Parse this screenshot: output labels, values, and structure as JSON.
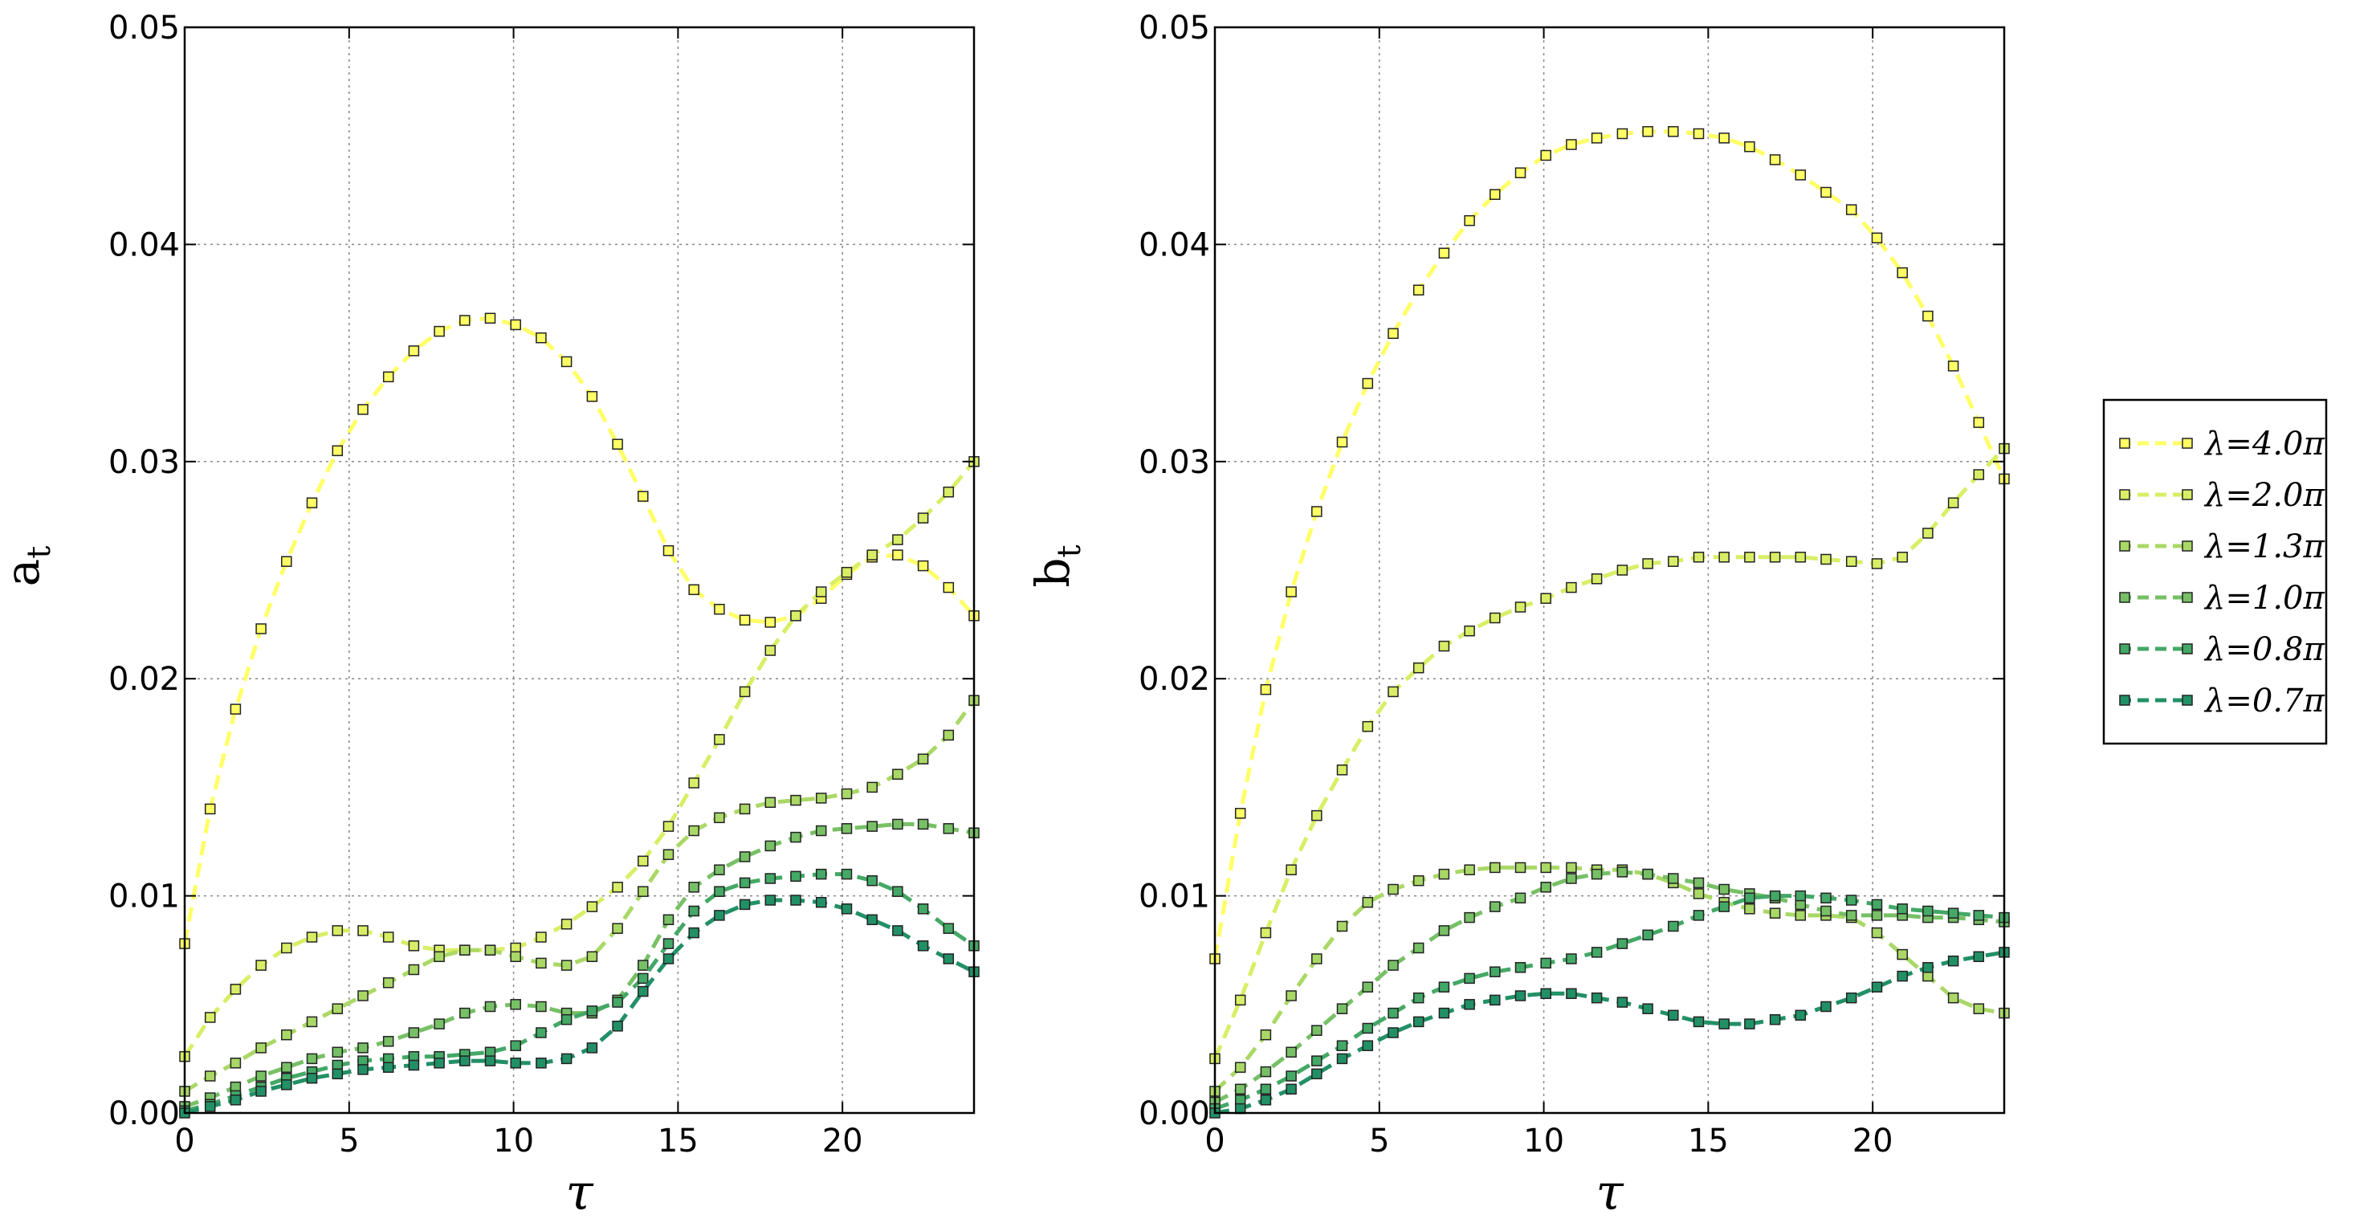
{
  "chart_data": [
    {
      "type": "line",
      "ylabel": "a",
      "ylabel_sub": "t",
      "xlabel": "τ",
      "xlim": [
        0,
        24
      ],
      "ylim": [
        0,
        0.05
      ],
      "xticks": [
        "0",
        "5",
        "10",
        "15",
        "20"
      ],
      "yticks": [
        "0.00",
        "0.01",
        "0.02",
        "0.03",
        "0.04",
        "0.05"
      ],
      "grid": true,
      "series": [
        {
          "name": "λ=4.0π",
          "color": "#ffff66",
          "values": [
            0.0078,
            0.014,
            0.0186,
            0.0223,
            0.0254,
            0.0281,
            0.0305,
            0.0324,
            0.0339,
            0.0351,
            0.036,
            0.0365,
            0.0366,
            0.0363,
            0.0357,
            0.0346,
            0.033,
            0.0308,
            0.0284,
            0.0259,
            0.0241,
            0.0232,
            0.0227,
            0.0226,
            0.0229,
            0.0237,
            0.0248,
            0.0256,
            0.0257,
            0.0252,
            0.0242,
            0.0229
          ]
        },
        {
          "name": "λ=2.0π",
          "color": "#d9ee66",
          "values": [
            0.0026,
            0.0044,
            0.0057,
            0.0068,
            0.0076,
            0.0081,
            0.0084,
            0.0084,
            0.0081,
            0.0077,
            0.0075,
            0.0075,
            0.0075,
            0.0076,
            0.0081,
            0.0087,
            0.0095,
            0.0104,
            0.0116,
            0.0132,
            0.0152,
            0.0172,
            0.0194,
            0.0213,
            0.0229,
            0.024,
            0.0249,
            0.0257,
            0.0264,
            0.0274,
            0.0286,
            0.03
          ]
        },
        {
          "name": "λ=1.3π",
          "color": "#aad866",
          "values": [
            0.001,
            0.0017,
            0.0023,
            0.003,
            0.0036,
            0.0042,
            0.0048,
            0.0054,
            0.006,
            0.0066,
            0.0072,
            0.0075,
            0.0075,
            0.0072,
            0.0069,
            0.0068,
            0.0072,
            0.0085,
            0.0102,
            0.0119,
            0.013,
            0.0136,
            0.014,
            0.0143,
            0.0144,
            0.0145,
            0.0147,
            0.015,
            0.0156,
            0.0163,
            0.0174,
            0.019
          ]
        },
        {
          "name": "λ=1.0π",
          "color": "#77c066",
          "values": [
            0.0003,
            0.0007,
            0.0012,
            0.0017,
            0.0021,
            0.0025,
            0.0028,
            0.003,
            0.0033,
            0.0037,
            0.0041,
            0.0046,
            0.0049,
            0.005,
            0.0049,
            0.0046,
            0.0046,
            0.0052,
            0.0068,
            0.0089,
            0.0104,
            0.0112,
            0.0118,
            0.0123,
            0.0127,
            0.013,
            0.0131,
            0.0132,
            0.0133,
            0.0133,
            0.0131,
            0.0129
          ]
        },
        {
          "name": "λ=0.8π",
          "color": "#44a866",
          "values": [
            0.0001,
            0.0004,
            0.0008,
            0.0012,
            0.0016,
            0.0019,
            0.0022,
            0.0024,
            0.0025,
            0.0026,
            0.0026,
            0.0027,
            0.0028,
            0.0031,
            0.0037,
            0.0043,
            0.0047,
            0.0051,
            0.0062,
            0.0078,
            0.0093,
            0.0102,
            0.0106,
            0.0108,
            0.0109,
            0.011,
            0.011,
            0.0107,
            0.0102,
            0.0094,
            0.0085,
            0.0077
          ]
        },
        {
          "name": "λ=0.7π",
          "color": "#229066",
          "values": [
            0.0,
            0.0003,
            0.0006,
            0.001,
            0.0013,
            0.0016,
            0.0018,
            0.002,
            0.0021,
            0.0022,
            0.0023,
            0.0024,
            0.0024,
            0.0023,
            0.0023,
            0.0025,
            0.003,
            0.004,
            0.0056,
            0.0071,
            0.0083,
            0.0091,
            0.0096,
            0.0098,
            0.0098,
            0.0097,
            0.0094,
            0.0089,
            0.0084,
            0.0077,
            0.0071,
            0.0065
          ]
        }
      ]
    },
    {
      "type": "line",
      "ylabel": "b",
      "ylabel_sub": "t",
      "xlabel": "τ",
      "xlim": [
        0,
        24
      ],
      "ylim": [
        0,
        0.05
      ],
      "xticks": [
        "0",
        "5",
        "10",
        "15",
        "20"
      ],
      "yticks": [
        "0.00",
        "0.01",
        "0.02",
        "0.03",
        "0.04",
        "0.05"
      ],
      "grid": true,
      "series": [
        {
          "name": "λ=4.0π",
          "color": "#ffff66",
          "values": [
            0.0071,
            0.0138,
            0.0195,
            0.024,
            0.0277,
            0.0309,
            0.0336,
            0.0359,
            0.0379,
            0.0396,
            0.0411,
            0.0423,
            0.0433,
            0.0441,
            0.0446,
            0.0449,
            0.0451,
            0.0452,
            0.0452,
            0.0451,
            0.0449,
            0.0445,
            0.0439,
            0.0432,
            0.0424,
            0.0416,
            0.0403,
            0.0387,
            0.0367,
            0.0344,
            0.0318,
            0.0292
          ]
        },
        {
          "name": "λ=2.0π",
          "color": "#d9ee66",
          "values": [
            0.0025,
            0.0052,
            0.0083,
            0.0112,
            0.0137,
            0.0158,
            0.0178,
            0.0194,
            0.0205,
            0.0215,
            0.0222,
            0.0228,
            0.0233,
            0.0237,
            0.0242,
            0.0246,
            0.025,
            0.0253,
            0.0254,
            0.0256,
            0.0256,
            0.0256,
            0.0256,
            0.0256,
            0.0255,
            0.0254,
            0.0253,
            0.0256,
            0.0267,
            0.0281,
            0.0294,
            0.0306
          ]
        },
        {
          "name": "λ=1.3π",
          "color": "#aad866",
          "values": [
            0.001,
            0.0021,
            0.0036,
            0.0054,
            0.0071,
            0.0086,
            0.0097,
            0.0103,
            0.0107,
            0.011,
            0.0112,
            0.0113,
            0.0113,
            0.0113,
            0.0113,
            0.0112,
            0.0112,
            0.011,
            0.0106,
            0.0101,
            0.0097,
            0.0094,
            0.0092,
            0.0091,
            0.0091,
            0.009,
            0.0083,
            0.0073,
            0.0063,
            0.0053,
            0.0048,
            0.0046
          ]
        },
        {
          "name": "λ=1.0π",
          "color": "#77c066",
          "values": [
            0.0005,
            0.0011,
            0.0019,
            0.0028,
            0.0038,
            0.0048,
            0.0058,
            0.0068,
            0.0076,
            0.0084,
            0.009,
            0.0095,
            0.0099,
            0.0104,
            0.0108,
            0.011,
            0.0111,
            0.011,
            0.0108,
            0.0106,
            0.0103,
            0.0101,
            0.0099,
            0.0096,
            0.0093,
            0.0091,
            0.0091,
            0.0091,
            0.009,
            0.009,
            0.0089,
            0.0088
          ]
        },
        {
          "name": "λ=0.8π",
          "color": "#44a866",
          "values": [
            0.0002,
            0.0006,
            0.0011,
            0.0017,
            0.0024,
            0.0031,
            0.0039,
            0.0046,
            0.0053,
            0.0058,
            0.0062,
            0.0065,
            0.0067,
            0.0069,
            0.0071,
            0.0074,
            0.0078,
            0.0082,
            0.0086,
            0.0091,
            0.0095,
            0.0099,
            0.01,
            0.01,
            0.0099,
            0.0098,
            0.0096,
            0.0094,
            0.0093,
            0.0092,
            0.0091,
            0.009
          ]
        },
        {
          "name": "λ=0.7π",
          "color": "#229066",
          "values": [
            0.0,
            0.0002,
            0.0006,
            0.0011,
            0.0018,
            0.0025,
            0.0031,
            0.0037,
            0.0042,
            0.0046,
            0.005,
            0.0052,
            0.0054,
            0.0055,
            0.0055,
            0.0053,
            0.0051,
            0.0048,
            0.0045,
            0.0042,
            0.0041,
            0.0041,
            0.0043,
            0.0045,
            0.0049,
            0.0053,
            0.0058,
            0.0063,
            0.0067,
            0.007,
            0.0072,
            0.0074
          ]
        }
      ]
    }
  ],
  "legend": {
    "placement": "right",
    "entries": [
      "λ=4.0π",
      "λ=2.0π",
      "λ=1.3π",
      "λ=1.0π",
      "λ=0.8π",
      "λ=0.7π"
    ]
  }
}
